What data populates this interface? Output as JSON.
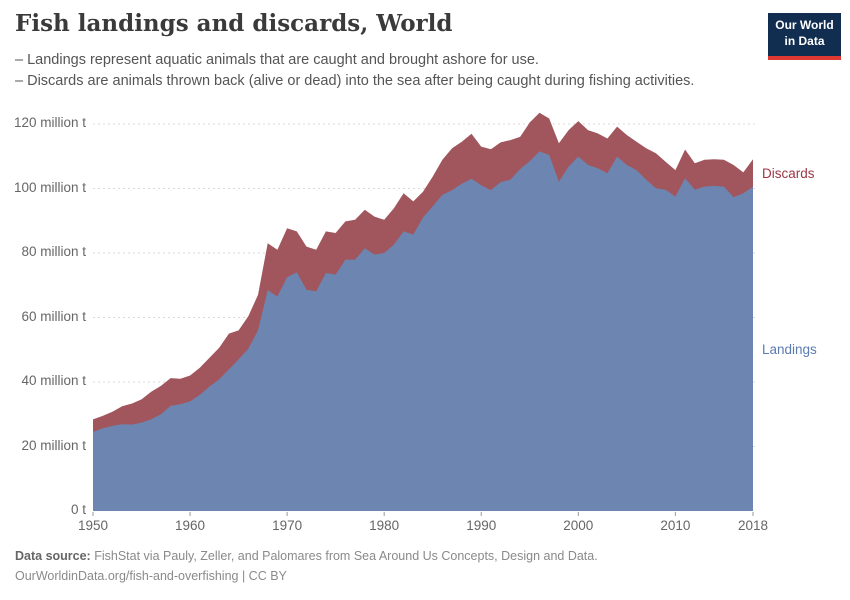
{
  "header": {
    "title": "Fish landings and discards, World",
    "subtitle_line1": "– Landings represent aquatic animals that are caught and brought ashore for use.",
    "subtitle_line2": "– Discards are animals thrown back (alive or dead) into the sea after being caught during fishing activities.",
    "logo": {
      "line1": "Our World",
      "line2": "in Data"
    }
  },
  "legend": {
    "discards": "Discards",
    "landings": "Landings"
  },
  "footer": {
    "data_source_label": "Data source:",
    "data_source_text": "FishStat via Pauly, Zeller, and Palomares from Sea Around Us Concepts, Design and Data.",
    "citation_line": "OurWorldinData.org/fish-and-overfishing | CC BY"
  },
  "colors": {
    "landings_area": "#6c86b1",
    "discards_area": "#a1565e",
    "landings_label": "#5b7bb3",
    "discards_label": "#9b3644",
    "grid": "#d9d9d9",
    "axis_tick": "#999999",
    "logo_bg": "#112e51",
    "logo_bar": "#e03931"
  },
  "chart_data": {
    "type": "area",
    "stacked": true,
    "title": "Fish landings and discards, World",
    "xlabel": "",
    "ylabel": "million t",
    "ylim": [
      0,
      130
    ],
    "grid": "dashed",
    "legend_position": "right",
    "x": [
      1950,
      1951,
      1952,
      1953,
      1954,
      1955,
      1956,
      1957,
      1958,
      1959,
      1960,
      1961,
      1962,
      1963,
      1964,
      1965,
      1966,
      1967,
      1968,
      1969,
      1970,
      1971,
      1972,
      1973,
      1974,
      1975,
      1976,
      1977,
      1978,
      1979,
      1980,
      1981,
      1982,
      1983,
      1984,
      1985,
      1986,
      1987,
      1988,
      1989,
      1990,
      1991,
      1992,
      1993,
      1994,
      1995,
      1996,
      1997,
      1998,
      1999,
      2000,
      2001,
      2002,
      2003,
      2004,
      2005,
      2006,
      2007,
      2008,
      2009,
      2010,
      2011,
      2012,
      2013,
      2014,
      2015,
      2016,
      2017,
      2018
    ],
    "series": [
      {
        "name": "Landings",
        "unit": "million t",
        "values": [
          24.5,
          25.6,
          26.4,
          26.9,
          26.8,
          27.4,
          28.4,
          30.0,
          32.6,
          33.1,
          34.0,
          36.0,
          38.6,
          40.8,
          43.9,
          47.0,
          50.3,
          56.0,
          68.5,
          66.5,
          72.5,
          74.0,
          68.6,
          68.1,
          73.8,
          73.3,
          77.9,
          77.9,
          81.5,
          79.5,
          80.0,
          82.6,
          86.7,
          85.7,
          91.0,
          94.5,
          98.0,
          99.5,
          101.5,
          103.0,
          101.0,
          99.5,
          102.0,
          102.7,
          106.0,
          108.5,
          111.5,
          110.4,
          102.1,
          106.8,
          109.9,
          107.3,
          106.3,
          104.7,
          109.9,
          107.3,
          105.7,
          102.7,
          100.1,
          99.6,
          97.5,
          103.2,
          99.6,
          100.6,
          100.8,
          100.6,
          97.3,
          98.5,
          100.5
        ]
      },
      {
        "name": "Discards",
        "unit": "million t",
        "values": [
          3.9,
          3.9,
          4.4,
          5.6,
          6.5,
          7.2,
          8.6,
          8.8,
          8.6,
          7.9,
          8.0,
          8.4,
          8.9,
          9.8,
          11.1,
          9.0,
          10.1,
          11.0,
          14.5,
          14.5,
          15.2,
          12.7,
          13.4,
          12.9,
          12.9,
          12.9,
          11.9,
          12.4,
          11.9,
          11.8,
          10.3,
          11.3,
          11.8,
          10.3,
          8.0,
          9.2,
          10.9,
          13.0,
          13.0,
          14.0,
          12.0,
          12.7,
          12.3,
          12.3,
          10.0,
          12.0,
          12.0,
          11.3,
          11.9,
          11.3,
          11.0,
          10.8,
          10.8,
          10.8,
          9.3,
          9.3,
          8.8,
          9.8,
          10.8,
          8.7,
          8.2,
          8.9,
          8.2,
          8.3,
          8.3,
          8.3,
          10.0,
          6.5,
          8.6
        ]
      }
    ],
    "yticks": [
      {
        "value": 0,
        "label": "0 t"
      },
      {
        "value": 20,
        "label": "20 million t"
      },
      {
        "value": 40,
        "label": "40 million t"
      },
      {
        "value": 60,
        "label": "60 million t"
      },
      {
        "value": 80,
        "label": "80 million t"
      },
      {
        "value": 100,
        "label": "100 million t"
      },
      {
        "value": 120,
        "label": "120 million t"
      }
    ],
    "xticks": [
      {
        "value": 1950,
        "label": "1950"
      },
      {
        "value": 1960,
        "label": "1960"
      },
      {
        "value": 1970,
        "label": "1970"
      },
      {
        "value": 1980,
        "label": "1980"
      },
      {
        "value": 1990,
        "label": "1990"
      },
      {
        "value": 2000,
        "label": "2000"
      },
      {
        "value": 2010,
        "label": "2010"
      },
      {
        "value": 2018,
        "label": "2018"
      }
    ]
  }
}
